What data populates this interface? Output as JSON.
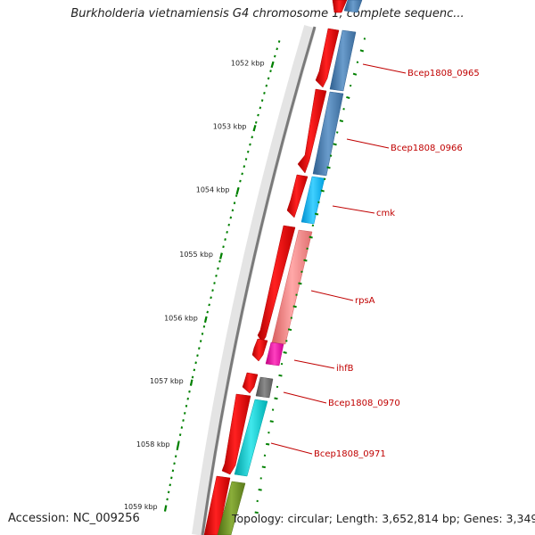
{
  "title": "Burkholderia vietnamiensis G4 chromosome 1, complete sequenc...",
  "footer": {
    "accession": "Accession: NC_009256",
    "summary": "Topology: circular; Length: 3,652,814 bp; Genes: 3,349"
  },
  "ticks": [
    "1052 kbp",
    "1053 kbp",
    "1054 kbp",
    "1055 kbp",
    "1056 kbp",
    "1057 kbp",
    "1058 kbp",
    "1059 kbp"
  ],
  "gene_labels": [
    "Bcep1808_0965",
    "Bcep1808_0966",
    "cmk",
    "rpsA",
    "ihfB",
    "Bcep1808_0970",
    "Bcep1808_0971"
  ],
  "colors": {
    "forward_strand": "#ff0000",
    "backbone": "#808080",
    "tick": "#008000",
    "label": "#c00000",
    "steel_blue": "#4682b4",
    "deep_sky_blue": "#00bfff",
    "light_coral": "#f08080",
    "magenta": "#ff00aa",
    "dim_gray": "#696969",
    "dark_turquoise": "#00ced1",
    "olive_drab": "#6b8e23"
  }
}
